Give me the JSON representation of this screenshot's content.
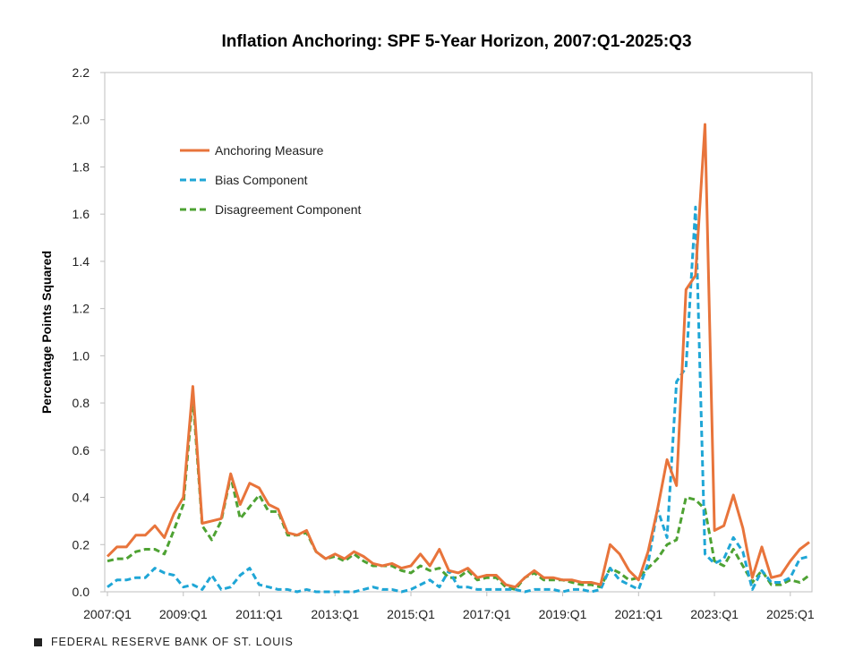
{
  "colors": {
    "anchoring": "#E8743B",
    "bias": "#1FA6D6",
    "disagreement": "#4EA233",
    "axis": "#bfbfbf"
  },
  "footer": {
    "source": "FEDERAL RESERVE BANK OF ST. LOUIS",
    "logo_icon": "square-bullet-icon"
  },
  "chart_data": {
    "type": "line",
    "title": "Inflation Anchoring: SPF 5-Year Horizon, 2007:Q1-2025:Q3",
    "xlabel": "",
    "ylabel": "Percentage Points Squared",
    "ylim": [
      0,
      2.2
    ],
    "yticks": [
      "0.0",
      "0.2",
      "0.4",
      "0.6",
      "0.8",
      "1.0",
      "1.2",
      "1.4",
      "1.6",
      "1.8",
      "2.0",
      "2.2"
    ],
    "xticks": [
      "2007:Q1",
      "2009:Q1",
      "2011:Q1",
      "2013:Q1",
      "2015:Q1",
      "2017:Q1",
      "2019:Q1",
      "2021:Q1",
      "2023:Q1",
      "2025:Q1"
    ],
    "grid": false,
    "legend_position": "upper-left",
    "x": [
      "2007:Q1",
      "2007:Q2",
      "2007:Q3",
      "2007:Q4",
      "2008:Q1",
      "2008:Q2",
      "2008:Q3",
      "2008:Q4",
      "2009:Q1",
      "2009:Q2",
      "2009:Q3",
      "2009:Q4",
      "2010:Q1",
      "2010:Q2",
      "2010:Q3",
      "2010:Q4",
      "2011:Q1",
      "2011:Q2",
      "2011:Q3",
      "2011:Q4",
      "2012:Q1",
      "2012:Q2",
      "2012:Q3",
      "2012:Q4",
      "2013:Q1",
      "2013:Q2",
      "2013:Q3",
      "2013:Q4",
      "2014:Q1",
      "2014:Q2",
      "2014:Q3",
      "2014:Q4",
      "2015:Q1",
      "2015:Q2",
      "2015:Q3",
      "2015:Q4",
      "2016:Q1",
      "2016:Q2",
      "2016:Q3",
      "2016:Q4",
      "2017:Q1",
      "2017:Q2",
      "2017:Q3",
      "2017:Q4",
      "2018:Q1",
      "2018:Q2",
      "2018:Q3",
      "2018:Q4",
      "2019:Q1",
      "2019:Q2",
      "2019:Q3",
      "2019:Q4",
      "2020:Q1",
      "2020:Q2",
      "2020:Q3",
      "2020:Q4",
      "2021:Q1",
      "2021:Q2",
      "2021:Q3",
      "2021:Q4",
      "2022:Q1",
      "2022:Q2",
      "2022:Q3",
      "2022:Q4",
      "2023:Q1",
      "2023:Q2",
      "2023:Q3",
      "2023:Q4",
      "2024:Q1",
      "2024:Q2",
      "2024:Q3",
      "2024:Q4",
      "2025:Q1",
      "2025:Q2",
      "2025:Q3"
    ],
    "series": [
      {
        "name": "Anchoring Measure",
        "style": "solid",
        "values": [
          0.15,
          0.19,
          0.19,
          0.24,
          0.24,
          0.28,
          0.23,
          0.33,
          0.4,
          0.87,
          0.29,
          0.3,
          0.31,
          0.5,
          0.37,
          0.46,
          0.44,
          0.37,
          0.35,
          0.25,
          0.24,
          0.26,
          0.17,
          0.14,
          0.16,
          0.14,
          0.17,
          0.15,
          0.12,
          0.11,
          0.12,
          0.1,
          0.11,
          0.16,
          0.11,
          0.18,
          0.09,
          0.08,
          0.1,
          0.06,
          0.07,
          0.07,
          0.03,
          0.02,
          0.06,
          0.09,
          0.06,
          0.06,
          0.05,
          0.05,
          0.04,
          0.04,
          0.03,
          0.2,
          0.16,
          0.09,
          0.05,
          0.17,
          0.35,
          0.56,
          0.45,
          1.28,
          1.34,
          1.98,
          0.26,
          0.28,
          0.41,
          0.27,
          0.06,
          0.19,
          0.06,
          0.07,
          0.13,
          0.18,
          0.21
        ]
      },
      {
        "name": "Bias Component",
        "style": "dashed",
        "values": [
          0.02,
          0.05,
          0.05,
          0.06,
          0.06,
          0.1,
          0.08,
          0.07,
          0.02,
          0.03,
          0.01,
          0.07,
          0.01,
          0.02,
          0.07,
          0.1,
          0.03,
          0.02,
          0.01,
          0.01,
          0.0,
          0.01,
          0.0,
          0.0,
          0.0,
          0.0,
          0.0,
          0.01,
          0.02,
          0.01,
          0.01,
          0.0,
          0.01,
          0.03,
          0.05,
          0.02,
          0.09,
          0.02,
          0.02,
          0.01,
          0.01,
          0.01,
          0.01,
          0.01,
          0.0,
          0.01,
          0.01,
          0.01,
          0.0,
          0.01,
          0.01,
          0.0,
          0.01,
          0.1,
          0.05,
          0.03,
          0.01,
          0.12,
          0.35,
          0.23,
          0.89,
          0.95,
          1.63,
          0.16,
          0.12,
          0.14,
          0.23,
          0.17,
          0.01,
          0.09,
          0.04,
          0.04,
          0.06,
          0.14,
          0.15
        ]
      },
      {
        "name": "Disagreement Component",
        "style": "dashed",
        "values": [
          0.13,
          0.14,
          0.14,
          0.17,
          0.18,
          0.18,
          0.16,
          0.26,
          0.37,
          0.83,
          0.28,
          0.22,
          0.3,
          0.49,
          0.31,
          0.36,
          0.41,
          0.34,
          0.34,
          0.24,
          0.24,
          0.25,
          0.17,
          0.14,
          0.15,
          0.13,
          0.16,
          0.13,
          0.11,
          0.11,
          0.11,
          0.09,
          0.08,
          0.11,
          0.09,
          0.1,
          0.06,
          0.06,
          0.09,
          0.05,
          0.06,
          0.06,
          0.02,
          0.01,
          0.06,
          0.08,
          0.05,
          0.05,
          0.05,
          0.04,
          0.03,
          0.03,
          0.02,
          0.1,
          0.08,
          0.05,
          0.06,
          0.1,
          0.14,
          0.2,
          0.22,
          0.4,
          0.39,
          0.35,
          0.13,
          0.11,
          0.18,
          0.11,
          0.04,
          0.09,
          0.03,
          0.03,
          0.05,
          0.04,
          0.07
        ]
      }
    ]
  }
}
